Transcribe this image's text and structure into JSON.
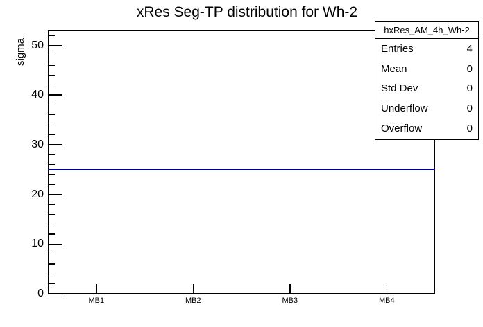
{
  "title": "xRes Seg-TP distribution for Wh-2",
  "y_axis": {
    "title": "sigma",
    "tick_labels": [
      "0",
      "10",
      "20",
      "30",
      "40",
      "50"
    ]
  },
  "x_axis": {
    "tick_labels": [
      "MB1",
      "MB2",
      "MB3",
      "MB4"
    ]
  },
  "stats_box": {
    "title": "hxRes_AM_4h_Wh-2",
    "rows": [
      {
        "label": "Entries",
        "value": "4"
      },
      {
        "label": "Mean",
        "value": "0"
      },
      {
        "label": "Std Dev",
        "value": "0"
      },
      {
        "label": "Underflow",
        "value": "0"
      },
      {
        "label": "Overflow",
        "value": "0"
      }
    ]
  },
  "colors": {
    "hist_line": "#000099",
    "axis": "#000000",
    "background": "#ffffff"
  },
  "chart_data": {
    "type": "line",
    "title": "xRes Seg-TP distribution for Wh-2",
    "xlabel": "",
    "ylabel": "sigma",
    "categories": [
      "MB1",
      "MB2",
      "MB3",
      "MB4"
    ],
    "values": [
      25,
      25,
      25,
      25
    ],
    "ylim": [
      0,
      53
    ],
    "y_major_ticks": [
      0,
      10,
      20,
      30,
      40,
      50
    ],
    "y_minor_step": 2,
    "grid": false,
    "legend_position": "none",
    "line_color": "#000099",
    "stats": {
      "name": "hxRes_AM_4h_Wh-2",
      "entries": 4,
      "mean": 0,
      "std_dev": 0,
      "underflow": 0,
      "overflow": 0
    }
  }
}
